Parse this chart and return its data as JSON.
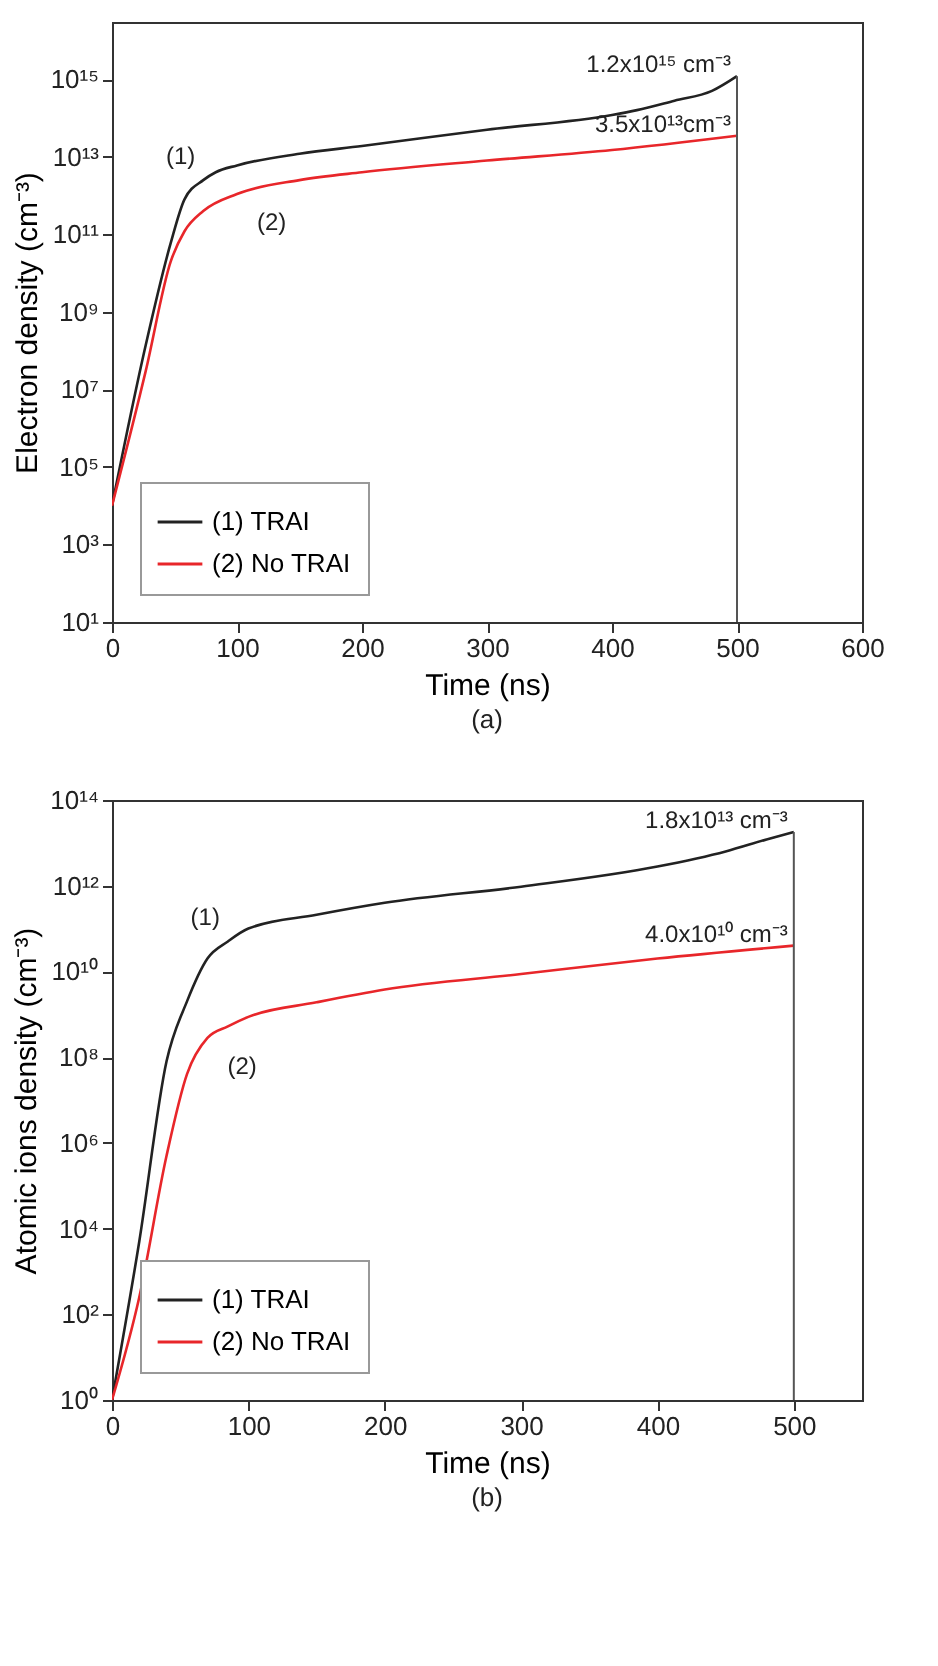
{
  "chart_data": [
    {
      "type": "line",
      "xlabel": "Time (ns)",
      "ylabel": "Electron density (cm⁻³)",
      "log": "y",
      "grid": false,
      "legend": "bottom left",
      "xlim": [
        0,
        600
      ],
      "xticks": [
        0,
        100,
        200,
        300,
        400,
        500,
        600
      ],
      "ylim": [
        10,
        3e+16
      ],
      "yticks": [
        {
          "value": 10,
          "label": "10¹"
        },
        {
          "value": 1000,
          "label": "10³"
        },
        {
          "value": 100000.0,
          "label": "10⁵"
        },
        {
          "value": 10000000.0,
          "label": "10⁷"
        },
        {
          "value": 1000000000.0,
          "label": "10⁹"
        },
        {
          "value": 100000000000.0,
          "label": "10¹¹"
        },
        {
          "value": 10000000000000.0,
          "label": "10¹³"
        },
        {
          "value": 1000000000000000.0,
          "label": "10¹⁵"
        }
      ],
      "series": [
        {
          "name": "(1) TRAI",
          "color": "#222222",
          "x": [
            0,
            27,
            47,
            58,
            73,
            83,
            100,
            150,
            200,
            300,
            400,
            420,
            450,
            480,
            500
          ],
          "values": [
            10000.0,
            140000000.0,
            60000000000.0,
            800000000000.0,
            2500000000000.0,
            4000000000000.0,
            6000000000000.0,
            12000000000000.0,
            19000000000000.0,
            50000000000000.0,
            120000000000000.0,
            160000000000000.0,
            280000000000000.0,
            500000000000000.0,
            1200000000000000.0
          ]
        },
        {
          "name": "(2) No TRAI",
          "color": "#e8262a",
          "x": [
            0,
            27,
            47,
            58,
            73,
            100,
            150,
            200,
            300,
            400,
            500
          ],
          "values": [
            10000.0,
            30000000.0,
            20000000000.0,
            120000000000.0,
            400000000000.0,
            1100000000000.0,
            2500000000000.0,
            4000000000000.0,
            8000000000000.0,
            15000000000000.0,
            35000000000000.0
          ]
        }
      ],
      "ref_lines": [
        {
          "axis": "x",
          "value": 500,
          "color": "#555555"
        }
      ],
      "annotations": [
        {
          "text": "(1)",
          "x": 73,
          "y": 2500000000000.0
        },
        {
          "text": "(2)",
          "x": 100,
          "y": 1100000000000.0
        },
        {
          "text": "1.2x10¹⁵ cm⁻³",
          "x": 500,
          "y": 1200000000000000.0
        },
        {
          "text": "3.5x10¹³cm⁻³",
          "x": 500,
          "y": 35000000000000.0
        },
        "(a)"
      ]
    },
    {
      "type": "line",
      "xlabel": "Time (ns)",
      "ylabel": "Atomic ions density (cm⁻³)",
      "log": "y",
      "grid": false,
      "legend": "bottom left",
      "xlim": [
        0,
        550
      ],
      "xticks": [
        0,
        100,
        200,
        300,
        400,
        500
      ],
      "ylim": [
        1,
        100000000000000.0
      ],
      "yticks": [
        {
          "value": 1,
          "label": "10⁰"
        },
        {
          "value": 100,
          "label": "10²"
        },
        {
          "value": 10000.0,
          "label": "10⁴"
        },
        {
          "value": 1000000.0,
          "label": "10⁶"
        },
        {
          "value": 100000000.0,
          "label": "10⁸"
        },
        {
          "value": 10000000000.0,
          "label": "10¹⁰"
        },
        {
          "value": 1000000000000.0,
          "label": "10¹²"
        },
        {
          "value": 100000000000000.0,
          "label": "10¹⁴"
        }
      ],
      "series": [
        {
          "name": "(1) TRAI",
          "color": "#222222",
          "x": [
            0,
            20,
            40,
            55,
            70,
            85,
            100,
            150,
            200,
            300,
            400,
            450,
            480,
            500
          ],
          "values": [
            1,
            5000,
            80000000.0,
            2000000000.0,
            20000000000.0,
            50000000000.0,
            100000000000.0,
            210000000000.0,
            400000000000.0,
            950000000000.0,
            2800000000000.0,
            6300000000000.0,
            12000000000000.0,
            18000000000000.0
          ]
        },
        {
          "name": "(2) No TRAI",
          "color": "#e8262a",
          "x": [
            0,
            20,
            40,
            55,
            70,
            85,
            100,
            150,
            200,
            300,
            400,
            500
          ],
          "values": [
            1,
            250,
            500000.0,
            40000000.0,
            280000000.0,
            520000000.0,
            870000000.0,
            1900000000.0,
            3800000000.0,
            8700000000.0,
            20000000000.0,
            40000000000.0
          ]
        }
      ],
      "ref_lines": [
        {
          "axis": "x",
          "value": 500,
          "color": "#555555"
        }
      ],
      "annotations": [
        {
          "text": "(1)",
          "x": 85,
          "y": 50000000000.0
        },
        {
          "text": "(2)",
          "x": 70,
          "y": 280000000.0
        },
        {
          "text": "1.8x10¹³ cm⁻³",
          "x": 500,
          "y": 18000000000000.0
        },
        {
          "text": "4.0x10¹⁰ cm⁻³",
          "x": 500,
          "y": 40000000000.0
        },
        "(b)"
      ]
    }
  ]
}
